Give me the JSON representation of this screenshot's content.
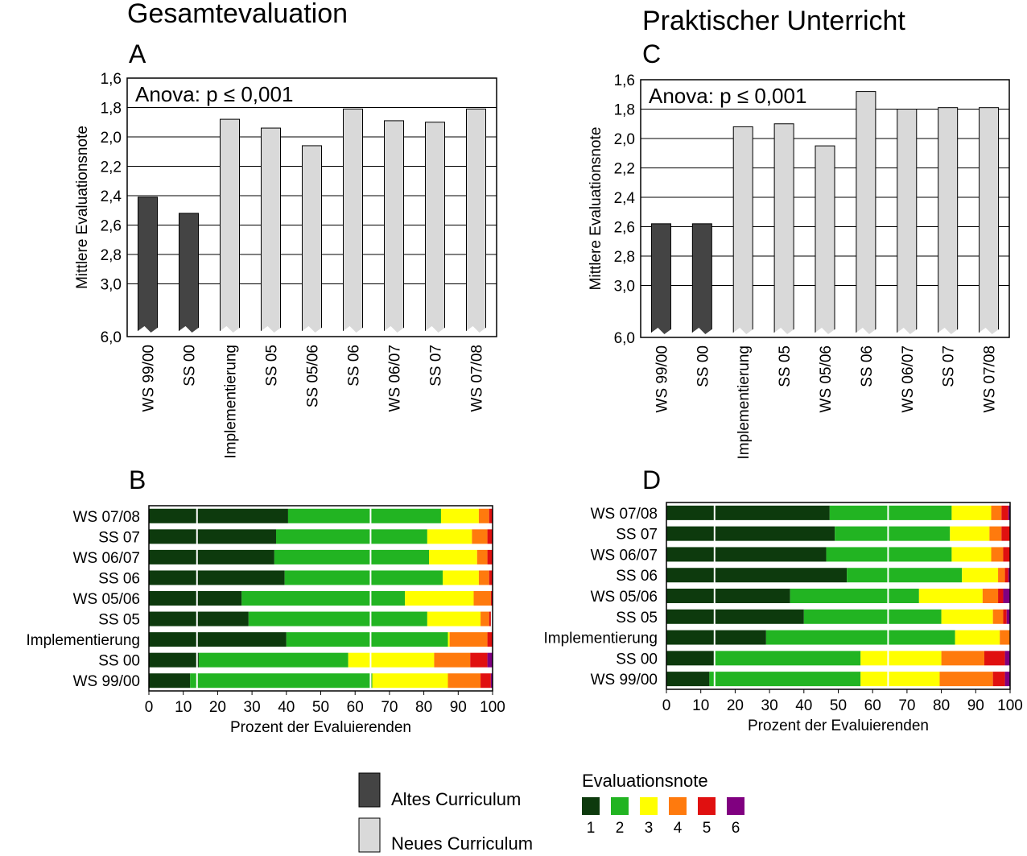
{
  "sections": [
    {
      "title": "Gesamtevaluation"
    },
    {
      "title": "Praktischer Unterricht"
    }
  ],
  "chart_data": [
    {
      "panel": "A",
      "type": "bar",
      "annotation": "Anova: p ≤ 0,001",
      "ylabel": "Mittlere Evaluationsnote",
      "xlabel": "",
      "y_axis_inverted": true,
      "y_axis_broken": true,
      "yticks": [
        "1,6",
        "1,8",
        "2,0",
        "2,2",
        "2,4",
        "2,6",
        "2,8",
        "3,0",
        "6,0"
      ],
      "ylim": [
        6.0,
        1.6
      ],
      "categories": [
        "WS 99/00",
        "SS 00",
        "Implementierung",
        "SS 05",
        "SS 05/06",
        "SS 06",
        "WS 06/07",
        "SS 07",
        "WS 07/08"
      ],
      "values": [
        2.41,
        2.52,
        1.88,
        1.94,
        2.06,
        1.81,
        1.89,
        1.9,
        1.81
      ],
      "groups": [
        "alt",
        "alt",
        "neu",
        "neu",
        "neu",
        "neu",
        "neu",
        "neu",
        "neu"
      ],
      "grid": true
    },
    {
      "panel": "C",
      "type": "bar",
      "annotation": "Anova: p ≤ 0,001",
      "ylabel": "Mittlere Evaluationsnote",
      "xlabel": "",
      "y_axis_inverted": true,
      "y_axis_broken": true,
      "yticks": [
        "1,6",
        "1,8",
        "2,0",
        "2,2",
        "2,4",
        "2,6",
        "2,8",
        "3,0",
        "6,0"
      ],
      "ylim": [
        6.0,
        1.6
      ],
      "categories": [
        "WS 99/00",
        "SS 00",
        "Implementierung",
        "SS 05",
        "WS 05/06",
        "SS 06",
        "WS 06/07",
        "SS 07",
        "WS 07/08"
      ],
      "values": [
        2.58,
        2.58,
        1.92,
        1.9,
        2.05,
        1.68,
        1.8,
        1.79,
        1.79
      ],
      "groups": [
        "alt",
        "alt",
        "neu",
        "neu",
        "neu",
        "neu",
        "neu",
        "neu",
        "neu"
      ],
      "grid": true
    },
    {
      "panel": "B",
      "type": "bar",
      "orientation": "horizontal",
      "stacked": true,
      "xlabel": "Prozent der Evaluierenden",
      "xticks": [
        "0",
        "10",
        "20",
        "30",
        "40",
        "50",
        "60",
        "70",
        "80",
        "90",
        "100"
      ],
      "xlim": [
        0,
        100
      ],
      "categories": [
        "WS 07/08",
        "SS 07",
        "WS 06/07",
        "SS 06",
        "WS 05/06",
        "SS 05",
        "Implementierung",
        "SS 00",
        "WS 99/00"
      ],
      "series": [
        {
          "name": "1",
          "values": [
            40.5,
            37,
            36.5,
            39.5,
            27,
            29,
            40,
            14.5,
            12
          ]
        },
        {
          "name": "2",
          "values": [
            44.5,
            44,
            45,
            46,
            47.5,
            52,
            47,
            43.5,
            53
          ]
        },
        {
          "name": "3",
          "values": [
            11,
            13,
            14,
            10.5,
            20,
            15.5,
            0.5,
            25,
            22
          ]
        },
        {
          "name": "4",
          "values": [
            3,
            4.5,
            3,
            3,
            5,
            2.5,
            11,
            10.5,
            9.5
          ]
        },
        {
          "name": "5",
          "values": [
            1,
            1.5,
            1.5,
            1,
            0.5,
            0.5,
            1.5,
            5,
            3
          ]
        },
        {
          "name": "6",
          "values": [
            0,
            0,
            0,
            0,
            0,
            0,
            0,
            1.5,
            0.5
          ]
        }
      ],
      "grid": false
    },
    {
      "panel": "D",
      "type": "bar",
      "orientation": "horizontal",
      "stacked": true,
      "xlabel": "Prozent der Evaluierenden",
      "xticks": [
        "0",
        "10",
        "20",
        "30",
        "40",
        "50",
        "60",
        "70",
        "80",
        "90",
        "100"
      ],
      "xlim": [
        0,
        100
      ],
      "categories": [
        "WS 07/08",
        "SS 07",
        "WS 06/07",
        "SS 06",
        "WS 05/06",
        "SS 05",
        "Implementierung",
        "SS 00",
        "WS 99/00"
      ],
      "series": [
        {
          "name": "1",
          "values": [
            47.5,
            49,
            46.5,
            52.5,
            36,
            40,
            29,
            14,
            12.5
          ]
        },
        {
          "name": "2",
          "values": [
            35.5,
            33.5,
            36.5,
            33.5,
            37.5,
            40,
            55,
            42.5,
            44
          ]
        },
        {
          "name": "3",
          "values": [
            11.5,
            11.5,
            11.5,
            10.5,
            18.5,
            15,
            13,
            23.5,
            23
          ]
        },
        {
          "name": "4",
          "values": [
            3,
            3.5,
            3.5,
            2,
            4.5,
            3,
            3,
            12.5,
            15.5
          ]
        },
        {
          "name": "5",
          "values": [
            2,
            2.5,
            2,
            1,
            1.5,
            1,
            0,
            6,
            3.5
          ]
        },
        {
          "name": "6",
          "values": [
            0.5,
            0,
            0,
            0.5,
            2,
            1,
            0,
            1.5,
            1.5
          ]
        }
      ],
      "grid": false
    }
  ],
  "legend": {
    "groups": [
      {
        "label": "Altes Curriculum",
        "color": "#444444"
      },
      {
        "label": "Neues Curriculum",
        "color": "#d9d9d9"
      }
    ],
    "grade_title": "Evaluationsnote",
    "grades": [
      {
        "label": "1",
        "color": "#0d3a0d"
      },
      {
        "label": "2",
        "color": "#22b422"
      },
      {
        "label": "3",
        "color": "#ffff00"
      },
      {
        "label": "4",
        "color": "#ff7a0d"
      },
      {
        "label": "5",
        "color": "#e01010"
      },
      {
        "label": "6",
        "color": "#800080"
      }
    ]
  },
  "colors": {
    "alt": "#444444",
    "neu": "#d9d9d9"
  }
}
